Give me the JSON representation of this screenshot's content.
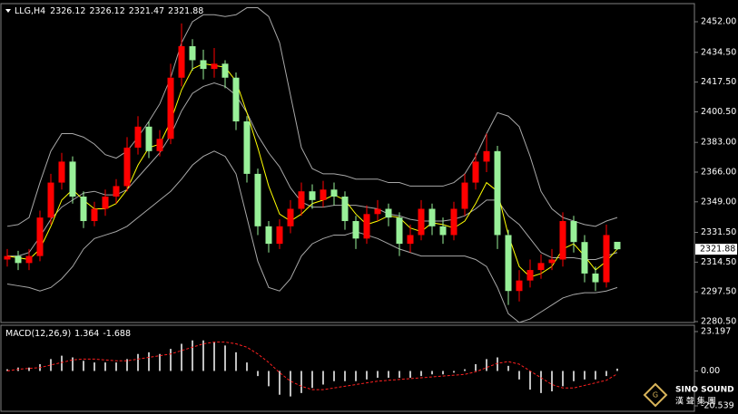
{
  "header": {
    "symbol": "LLG,H4"
  },
  "logo": {
    "name": "SINO SOUND",
    "tagline": "漢 聲 集 團"
  },
  "chart_data": [
    {
      "type": "candlestick",
      "up_color": "#ff0000",
      "down_color": "#98f098",
      "open": [
        2316,
        2318,
        2314,
        2318,
        2340,
        2360,
        2372,
        2352,
        2338,
        2345,
        2352,
        2358,
        2380,
        2392,
        2378,
        2385,
        2420,
        2438,
        2430,
        2425,
        2428,
        2420,
        2395,
        2365,
        2335,
        2325,
        2335,
        2345,
        2355,
        2350,
        2356,
        2352,
        2338,
        2328,
        2342,
        2345,
        2340,
        2325,
        2330,
        2345,
        2335,
        2330,
        2345,
        2360,
        2372,
        2378,
        2330,
        2298,
        2304,
        2310,
        2314,
        2316,
        2338,
        2326,
        2308,
        2303,
        2326.12
      ],
      "high": [
        2322,
        2321,
        2322,
        2344,
        2365,
        2377,
        2375,
        2355,
        2349,
        2356,
        2362,
        2386,
        2398,
        2395,
        2390,
        2428,
        2451,
        2442,
        2436,
        2437,
        2430,
        2423,
        2398,
        2368,
        2338,
        2339,
        2350,
        2360,
        2359,
        2361,
        2360,
        2355,
        2341,
        2347,
        2350,
        2348,
        2343,
        2336,
        2350,
        2348,
        2340,
        2349,
        2365,
        2377,
        2388,
        2381,
        2333,
        2310,
        2316,
        2319,
        2322,
        2343,
        2341,
        2330,
        2312,
        2336,
        2326.12
      ],
      "low": [
        2312,
        2310,
        2310,
        2315,
        2336,
        2356,
        2348,
        2334,
        2335,
        2341,
        2348,
        2355,
        2376,
        2374,
        2375,
        2382,
        2415,
        2424,
        2419,
        2420,
        2414,
        2390,
        2360,
        2330,
        2320,
        2322,
        2331,
        2341,
        2345,
        2346,
        2347,
        2333,
        2322,
        2325,
        2338,
        2335,
        2318,
        2320,
        2327,
        2330,
        2325,
        2327,
        2341,
        2356,
        2366,
        2322,
        2290,
        2292,
        2300,
        2305,
        2310,
        2312,
        2320,
        2303,
        2298,
        2300,
        2321.47
      ],
      "close": [
        2318,
        2314,
        2318,
        2340,
        2360,
        2372,
        2352,
        2338,
        2345,
        2352,
        2358,
        2380,
        2392,
        2378,
        2385,
        2420,
        2438,
        2430,
        2425,
        2428,
        2420,
        2395,
        2365,
        2335,
        2325,
        2335,
        2345,
        2355,
        2350,
        2356,
        2352,
        2338,
        2328,
        2342,
        2345,
        2340,
        2325,
        2330,
        2345,
        2335,
        2330,
        2345,
        2360,
        2372,
        2378,
        2330,
        2298,
        2304,
        2310,
        2314,
        2316,
        2338,
        2326,
        2308,
        2303,
        2330,
        2321.88
      ],
      "lines": [
        {
          "color": "#a8a8a8",
          "values": [
            2335,
            2336,
            2340,
            2360,
            2378,
            2388,
            2388,
            2386,
            2382,
            2376,
            2374,
            2378,
            2386,
            2395,
            2405,
            2420,
            2440,
            2452,
            2456,
            2456,
            2455,
            2456,
            2460,
            2460,
            2455,
            2440,
            2410,
            2380,
            2368,
            2365,
            2365,
            2364,
            2362,
            2362,
            2362,
            2360,
            2360,
            2358,
            2358,
            2358,
            2358,
            2360,
            2365,
            2375,
            2388,
            2400,
            2398,
            2392,
            2375,
            2355,
            2345,
            2340,
            2338,
            2336,
            2335,
            2338,
            2340
          ]
        },
        {
          "color": "#a8a8a8",
          "values": [
            2318,
            2318,
            2320,
            2329,
            2339,
            2346,
            2350,
            2354,
            2355,
            2353,
            2353,
            2356,
            2363,
            2370,
            2377,
            2387,
            2401,
            2411,
            2415,
            2417,
            2415,
            2410,
            2400,
            2387,
            2377,
            2369,
            2357,
            2349,
            2346,
            2346,
            2347,
            2347,
            2347,
            2346,
            2345,
            2342,
            2341,
            2339,
            2338,
            2338,
            2338,
            2339,
            2341,
            2345,
            2350,
            2350,
            2341,
            2336,
            2328,
            2320,
            2317,
            2317,
            2317,
            2316,
            2316,
            2318,
            2320
          ]
        },
        {
          "color": "#a8a8a8",
          "values": [
            2302,
            2301,
            2300,
            2298,
            2300,
            2305,
            2312,
            2322,
            2328,
            2330,
            2332,
            2335,
            2340,
            2345,
            2350,
            2355,
            2362,
            2370,
            2375,
            2378,
            2375,
            2365,
            2340,
            2315,
            2300,
            2298,
            2305,
            2318,
            2325,
            2328,
            2330,
            2330,
            2332,
            2330,
            2328,
            2325,
            2322,
            2320,
            2318,
            2318,
            2318,
            2318,
            2318,
            2316,
            2312,
            2300,
            2285,
            2280,
            2282,
            2286,
            2290,
            2294,
            2296,
            2297,
            2297,
            2298,
            2300
          ]
        },
        {
          "color": "#ffff00",
          "values": [
            2318,
            2317,
            2316,
            2322,
            2335,
            2350,
            2356,
            2350,
            2345,
            2345,
            2348,
            2356,
            2370,
            2380,
            2382,
            2395,
            2413,
            2425,
            2428,
            2427,
            2426,
            2418,
            2400,
            2380,
            2358,
            2342,
            2338,
            2342,
            2348,
            2350,
            2353,
            2350,
            2342,
            2336,
            2338,
            2341,
            2340,
            2334,
            2332,
            2337,
            2336,
            2334,
            2338,
            2348,
            2360,
            2355,
            2330,
            2312,
            2306,
            2308,
            2312,
            2322,
            2325,
            2318,
            2310,
            2315,
            2322
          ]
        }
      ],
      "ylim": [
        2280.5,
        2461.84
      ],
      "yticks": [
        {
          "value": 2452,
          "label": "2452.00"
        },
        {
          "value": 2434.5,
          "label": "2434.50"
        },
        {
          "value": 2417.5,
          "label": "2417.50"
        },
        {
          "value": 2400.5,
          "label": "2400.50"
        },
        {
          "value": 2383,
          "label": "2383.00"
        },
        {
          "value": 2366,
          "label": "2366.00"
        },
        {
          "value": 2349,
          "label": "2349.00"
        },
        {
          "value": 2331.5,
          "label": "2331.50"
        },
        {
          "value": 2314.5,
          "label": "2314.50"
        },
        {
          "value": 2297.5,
          "label": "2297.50"
        },
        {
          "value": 2280.5,
          "label": "2280.50"
        }
      ]
    },
    {
      "type": "macd",
      "title": "MACD(12,26,9)",
      "histogram": {
        "color": "#ffffff",
        "values": [
          1,
          2,
          2,
          4,
          7,
          9,
          8,
          6,
          5,
          5,
          5,
          7,
          10,
          11,
          10,
          13,
          16,
          18,
          18,
          17,
          15,
          11,
          5,
          -3,
          -9,
          -14,
          -15,
          -13,
          -10,
          -8,
          -6,
          -6,
          -6,
          -5,
          -4,
          -4,
          -4,
          -4,
          -3,
          -2,
          -2,
          -1,
          1,
          4,
          7,
          8,
          3,
          -5,
          -11,
          -13,
          -12,
          -9,
          -6,
          -5,
          -5,
          -3,
          1.364
        ]
      },
      "signal": {
        "color": "#ff2020",
        "values": [
          0,
          1,
          1.5,
          2,
          3.5,
          5,
          6.5,
          7,
          7,
          6.5,
          6,
          6,
          7,
          8,
          9,
          10,
          12,
          14,
          16,
          17,
          17,
          16,
          14,
          10,
          5,
          -1,
          -6,
          -9,
          -11,
          -11,
          -10,
          -9,
          -8,
          -7,
          -6,
          -5.5,
          -5,
          -4.5,
          -4,
          -3.5,
          -3,
          -2.5,
          -2,
          -0.5,
          2,
          4.5,
          5.5,
          4,
          0,
          -4,
          -8,
          -10,
          -10,
          -8.5,
          -7,
          -5.5,
          -1.688
        ]
      },
      "ylim": [
        -20.539,
        23.197
      ],
      "yticks": [
        23.197,
        {
          "value": 0,
          "label": "0.00"
        },
        -20.539
      ]
    }
  ]
}
